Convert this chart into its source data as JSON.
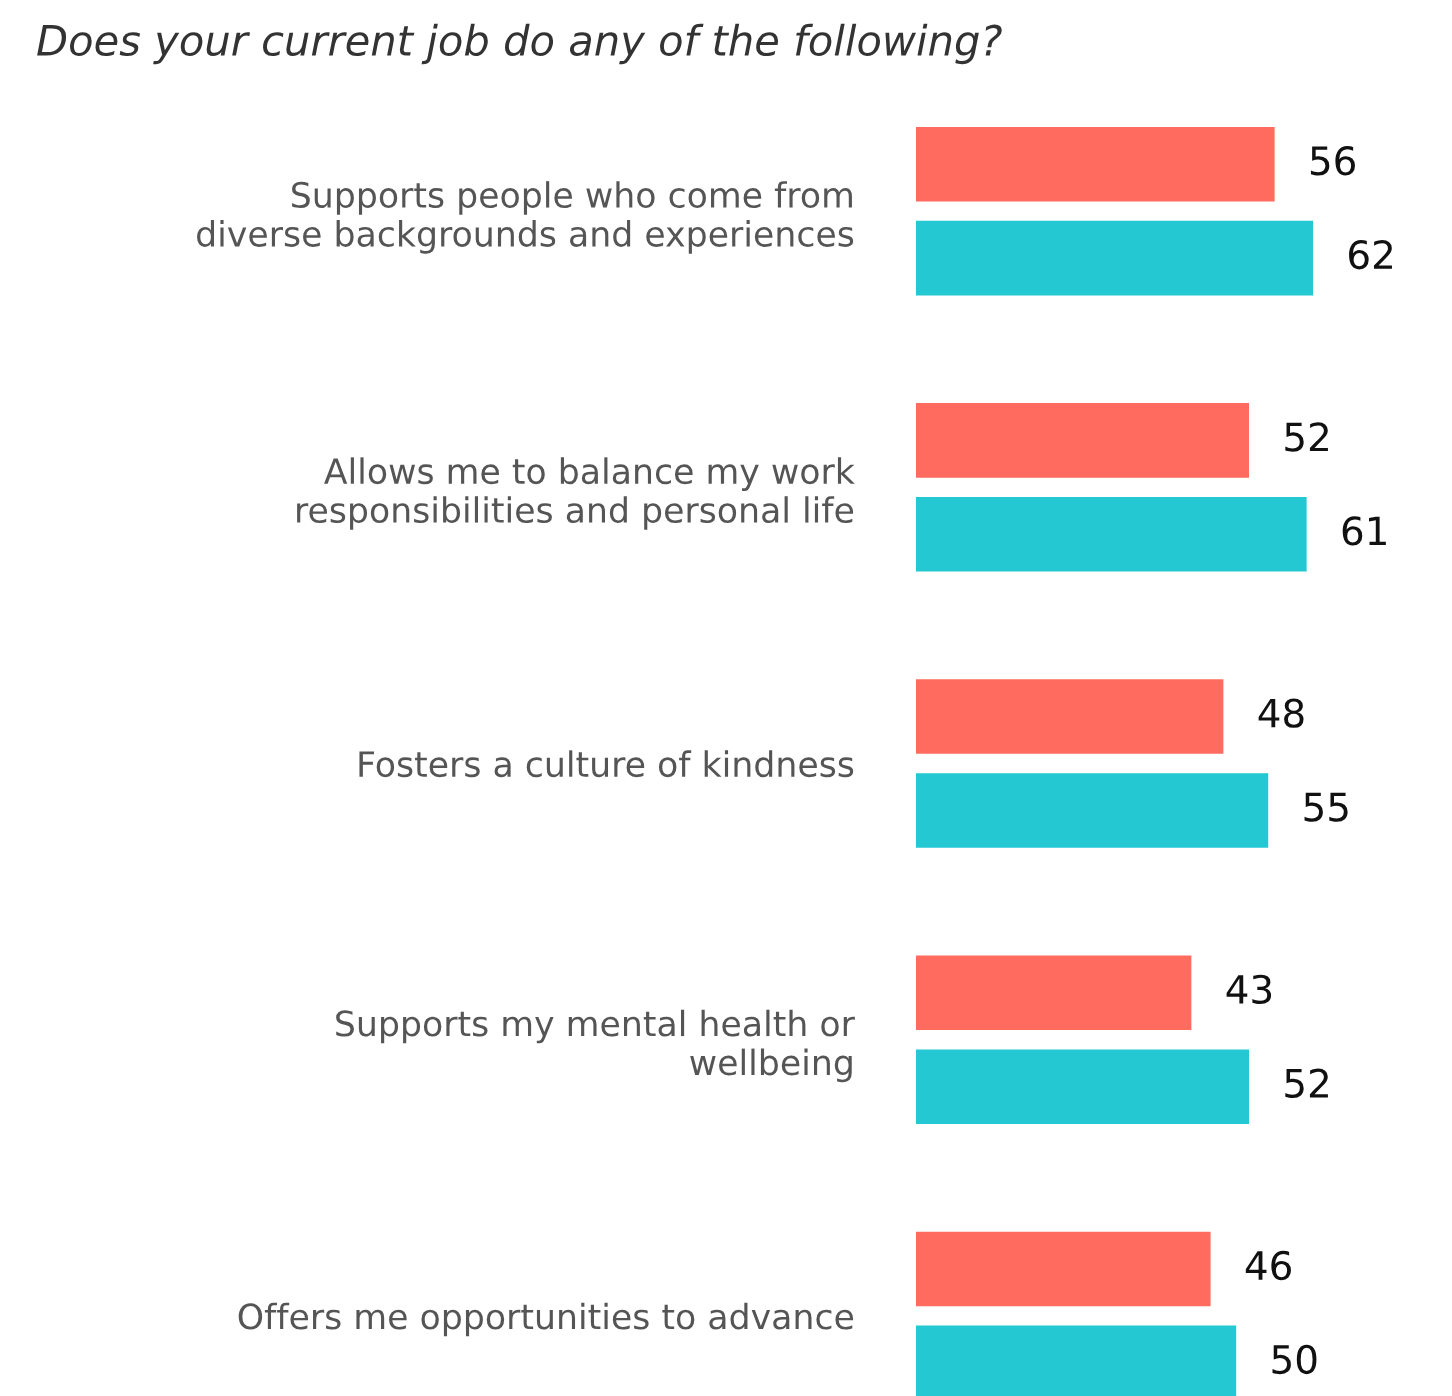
{
  "chart_data": {
    "type": "bar",
    "orientation": "horizontal",
    "title": "Does your current job do any of the following?",
    "categories": [
      "Supports people who come from\ndiverse backgrounds and experiences",
      "Allows me to balance my work\nresponsibilities and personal life",
      "Fosters a culture of kindness",
      "Supports my mental health or\nwellbeing",
      "Offers me opportunities to advance"
    ],
    "series": [
      {
        "color": "#ff6b5e",
        "values": [
          56,
          52,
          48,
          43,
          46
        ]
      },
      {
        "color": "#24c8d2",
        "values": [
          62,
          61,
          55,
          52,
          50
        ]
      }
    ],
    "data_labels": true
  }
}
